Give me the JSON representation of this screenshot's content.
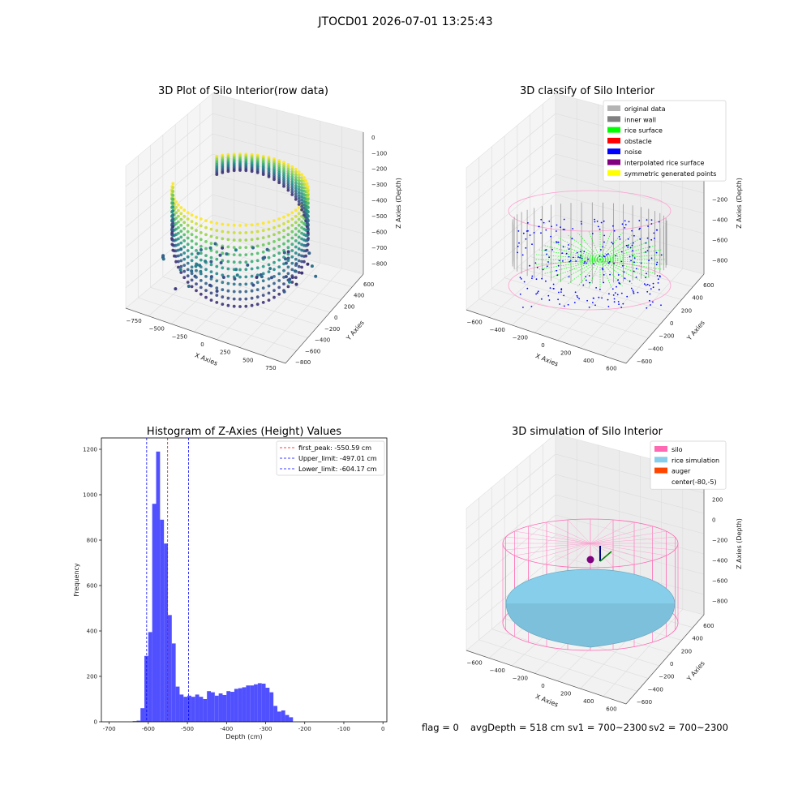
{
  "figure": {
    "suptitle": "JTOCD01 2026-07-01 13:25:43",
    "status": {
      "flag": "flag = 0",
      "avg_depth": "avgDepth = 518 cm",
      "sv1": "sv1 = 700~2300",
      "sv2": "sv2 = 700~2300"
    }
  },
  "chart_data": [
    {
      "type": "scatter",
      "projection": "3d",
      "title": "3D Plot of Silo Interior(row data)",
      "xlabel": "X Axies",
      "ylabel": "Y Axies",
      "zlabel": "Z Axies (Depth)",
      "xticks": [
        "−750",
        "−500",
        "−250",
        "0",
        "250",
        "500",
        "750"
      ],
      "yticks": [
        "−800",
        "−600",
        "−400",
        "−200",
        "0",
        "200",
        "400",
        "600"
      ],
      "zticks": [
        "0",
        "−100",
        "−200",
        "−300",
        "−400",
        "−500",
        "−600",
        "−700",
        "−800"
      ],
      "xlim": [
        -800,
        800
      ],
      "ylim": [
        -800,
        700
      ],
      "zlim": [
        -850,
        50
      ],
      "colormap": "viridis",
      "grid": true
    },
    {
      "type": "scatter",
      "projection": "3d",
      "title": "3D classify of Silo Interior",
      "xlabel": "X Axies",
      "ylabel": "Y Axies",
      "zlabel": "Z Axies (Depth)",
      "xticks": [
        "−600",
        "−400",
        "−200",
        "0",
        "200",
        "400",
        "600"
      ],
      "yticks": [
        "−600",
        "−400",
        "−200",
        "0",
        "200",
        "400",
        "600"
      ],
      "zticks": [
        "400",
        "200",
        "0",
        "−200",
        "−400",
        "−600",
        "−800"
      ],
      "legend_position": "top-right",
      "legend": [
        {
          "name": "original data",
          "color": "#b4b4b4"
        },
        {
          "name": "inner wall",
          "color": "#808080"
        },
        {
          "name": "rice surface",
          "color": "#00ff00"
        },
        {
          "name": "obstacle",
          "color": "#ff0000"
        },
        {
          "name": "noise",
          "color": "#0000ff"
        },
        {
          "name": "interpolated rice surface",
          "color": "#800080"
        },
        {
          "name": "symmetric generated points",
          "color": "#ffff00"
        }
      ],
      "grid": true
    },
    {
      "type": "bar",
      "title": "Histogram of Z-Axies (Height) Values",
      "xlabel": "Depth (cm)",
      "ylabel": "Frequency",
      "xlim": [
        -720,
        10
      ],
      "ylim": [
        0,
        1250
      ],
      "xticks": [
        -700,
        -600,
        -500,
        -400,
        -300,
        -200,
        -100,
        0
      ],
      "yticks": [
        0,
        200,
        400,
        600,
        800,
        1000,
        1200
      ],
      "bin_start": -640,
      "bin_width": 10,
      "values": [
        3,
        5,
        60,
        290,
        395,
        960,
        1190,
        890,
        785,
        470,
        345,
        155,
        120,
        110,
        115,
        110,
        120,
        110,
        100,
        135,
        130,
        115,
        125,
        118,
        135,
        132,
        145,
        148,
        152,
        160,
        160,
        165,
        170,
        168,
        150,
        130,
        70,
        45,
        50,
        30,
        20
      ],
      "bar_color": "#5050ff",
      "vlines": [
        {
          "x": -550.59,
          "color": "#ff0000",
          "label": "first_peak: -550.59 cm"
        },
        {
          "x": -497.01,
          "color": "#0000ff",
          "label": "Upper_limit: -497.01 cm"
        },
        {
          "x": -604.17,
          "color": "#0000ff",
          "label": "Lower_limit: -604.17 cm"
        }
      ],
      "legend_position": "top-right",
      "grid": false
    },
    {
      "type": "surface",
      "projection": "3d",
      "title": "3D simulation of Silo Interior",
      "xlabel": "X Axies",
      "ylabel": "Y Axies",
      "zlabel": "Z Axies (Depth)",
      "xticks": [
        "−600",
        "−400",
        "−200",
        "0",
        "200",
        "400",
        "600"
      ],
      "yticks": [
        "−600",
        "−400",
        "−200",
        "0",
        "200",
        "400",
        "600"
      ],
      "zticks": [
        "400",
        "200",
        "0",
        "−200",
        "−400",
        "−600",
        "−800"
      ],
      "legend_position": "top-right",
      "legend": [
        {
          "name": "silo",
          "color": "#ff69b4"
        },
        {
          "name": "rice simulation",
          "color": "#87ceeb"
        },
        {
          "name": "auger",
          "color": "#ff4500"
        },
        {
          "name": "center(-80,-5)",
          "color": "#ffffff"
        }
      ],
      "grid": true
    }
  ]
}
